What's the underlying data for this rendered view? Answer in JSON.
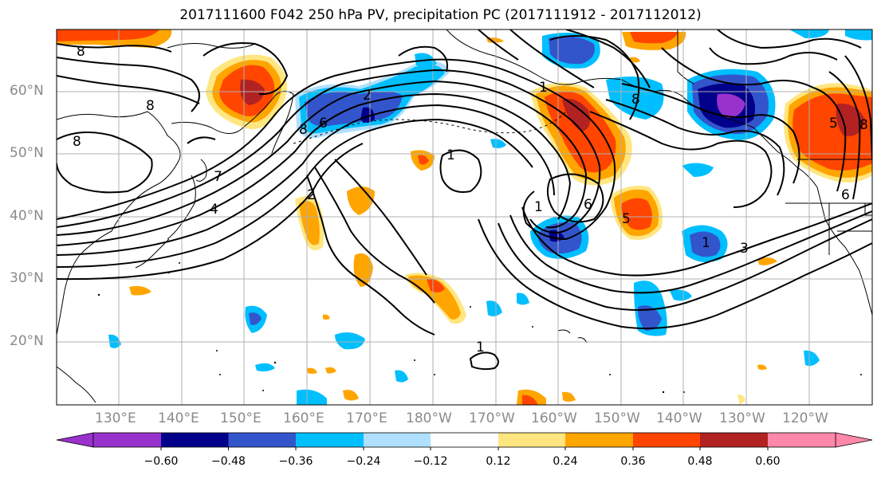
{
  "title": "2017111600 F042 250 hPa PV, precipitation PC (2017111912 - 2017112012)",
  "lat_labels": [
    "60°N",
    "50°N",
    "40°N",
    "30°N",
    "20°N"
  ],
  "lon_labels": [
    "130°E",
    "140°E",
    "150°E",
    "160°E",
    "170°E",
    "180°W",
    "170°W",
    "160°W",
    "150°W",
    "140°W",
    "130°W",
    "120°W"
  ],
  "colorbar": {
    "ticks": [
      "−0.60",
      "−0.48",
      "−0.36",
      "−0.24",
      "−0.12",
      "0.12",
      "0.24",
      "0.36",
      "0.48",
      "0.60"
    ],
    "colors": [
      "#9932cc",
      "#00008b",
      "#3355cc",
      "#00bfff",
      "#b0e0ff",
      "#ffffff",
      "#ffe680",
      "#ffa500",
      "#ff4500",
      "#b22222",
      "#ff88aa"
    ]
  },
  "contour_labels": [
    "8",
    "8",
    "8",
    "7",
    "4",
    "2",
    "6",
    "8",
    "1",
    "1",
    "6",
    "5",
    "5",
    "1",
    "3",
    "6",
    "1",
    "8",
    "8",
    "2",
    "1"
  ],
  "colors": {
    "land_outline": "#000000",
    "grid": "#b0b0b0",
    "contour": "#000000"
  }
}
